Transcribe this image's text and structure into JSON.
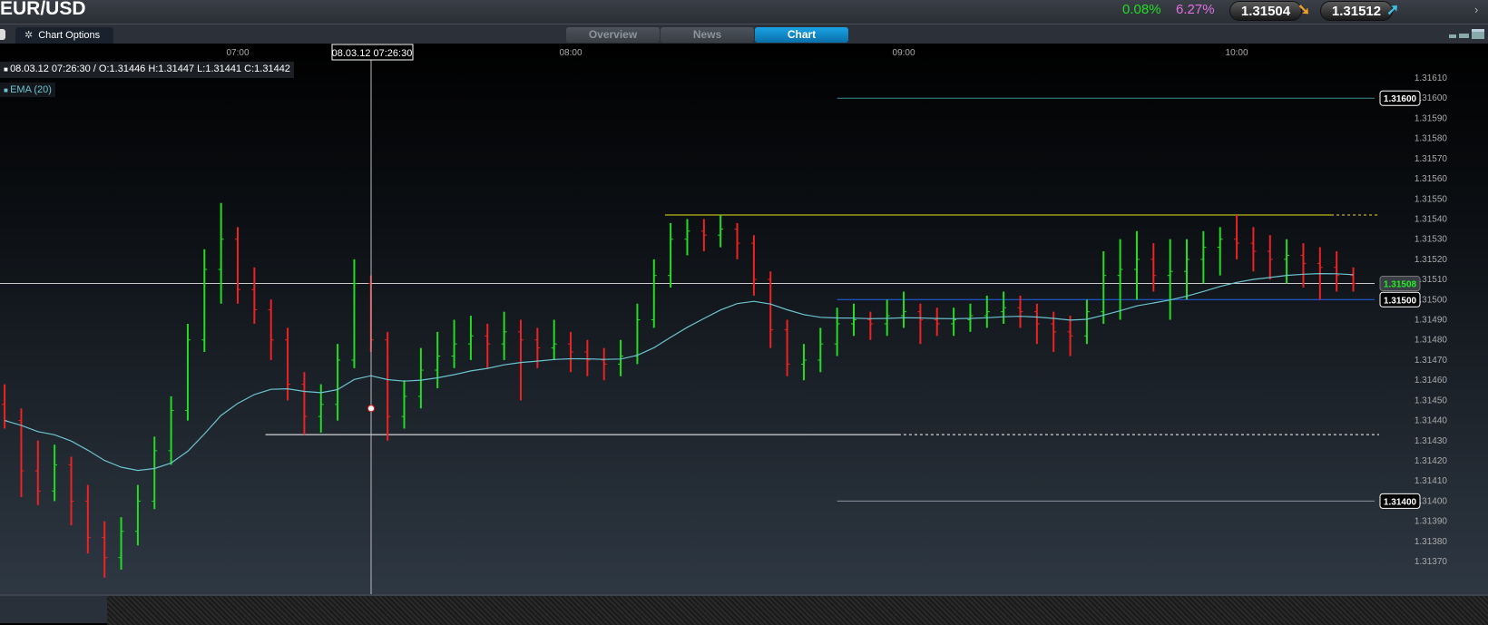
{
  "header": {
    "title": "EUR/USD",
    "change_pct": "0.08%",
    "range_pct": "6.27%",
    "sell_price": "1.31504",
    "buy_price": "1.31512",
    "colors": {
      "change": "#22dd22",
      "range": "#e070e0",
      "down_arrow": "#f0a020",
      "up_arrow": "#40c0e0"
    }
  },
  "toolbar": {
    "chart_options_label": "Chart Options",
    "tabs": [
      {
        "label": "Overview",
        "active": false
      },
      {
        "label": "News",
        "active": false
      },
      {
        "label": "Chart",
        "active": true
      }
    ]
  },
  "legend": {
    "ohlc": "08.03.12 07:26:30 / O:1.31446  H:1.31447  L:1.31441  C:1.31442",
    "indicator": "EMA (20)"
  },
  "crosshair": {
    "time_label": "08.03.12 07:26:30",
    "time": "07:26:30",
    "price": 1.31446
  },
  "chart_data": {
    "type": "ohlc",
    "x_ticks": [
      "07:00",
      "08:00",
      "09:00",
      "10:00"
    ],
    "y_ticks": [
      "1.31610",
      "1.31600",
      "1.31590",
      "1.31580",
      "1.31570",
      "1.31560",
      "1.31550",
      "1.31540",
      "1.31530",
      "1.31520",
      "1.31510",
      "1.31500",
      "1.31490",
      "1.31480",
      "1.31470",
      "1.31460",
      "1.31450",
      "1.31440",
      "1.31430",
      "1.31420",
      "1.31410",
      "1.31400",
      "1.31390",
      "1.31380",
      "1.31370"
    ],
    "xlim": [
      "06:17",
      "10:25"
    ],
    "ylim": [
      1.31362,
      1.31615
    ],
    "indicator": {
      "name": "EMA (20)",
      "period": 20,
      "color": "#6cc3d0"
    },
    "colors": {
      "up": "#22dd22",
      "down": "#ee2222"
    },
    "bars": [
      [
        "06:18",
        1.31448,
        1.31458,
        1.31436,
        1.3144
      ],
      [
        "06:21",
        1.3144,
        1.31446,
        1.31402,
        1.31415
      ],
      [
        "06:24",
        1.31415,
        1.3143,
        1.31398,
        1.31405
      ],
      [
        "06:27",
        1.31405,
        1.31428,
        1.314,
        1.31418
      ],
      [
        "06:30",
        1.31418,
        1.31422,
        1.31388,
        1.314
      ],
      [
        "06:33",
        1.314,
        1.31408,
        1.31374,
        1.31382
      ],
      [
        "06:36",
        1.31382,
        1.3139,
        1.31362,
        1.31372
      ],
      [
        "06:39",
        1.31372,
        1.31392,
        1.31366,
        1.31385
      ],
      [
        "06:42",
        1.31385,
        1.31408,
        1.31378,
        1.314
      ],
      [
        "06:45",
        1.314,
        1.31432,
        1.31396,
        1.31425
      ],
      [
        "06:48",
        1.31425,
        1.31452,
        1.31418,
        1.31445
      ],
      [
        "06:51",
        1.31445,
        1.31488,
        1.3144,
        1.3148
      ],
      [
        "06:54",
        1.3148,
        1.31525,
        1.31474,
        1.31515
      ],
      [
        "06:57",
        1.31515,
        1.31548,
        1.31498,
        1.3153
      ],
      [
        "07:00",
        1.3153,
        1.31536,
        1.31498,
        1.31505
      ],
      [
        "07:03",
        1.31505,
        1.31516,
        1.31488,
        1.31495
      ],
      [
        "07:06",
        1.31495,
        1.315,
        1.3147,
        1.3148
      ],
      [
        "07:09",
        1.3148,
        1.31486,
        1.3145,
        1.31458
      ],
      [
        "07:12",
        1.31458,
        1.31464,
        1.31433,
        1.31442
      ],
      [
        "07:15",
        1.31442,
        1.31458,
        1.31434,
        1.31448
      ],
      [
        "07:18",
        1.31448,
        1.31478,
        1.3144,
        1.3147
      ],
      [
        "07:21",
        1.3147,
        1.3152,
        1.31466,
        1.31508
      ],
      [
        "07:24",
        1.31508,
        1.31512,
        1.31474,
        1.3148
      ],
      [
        "07:27",
        1.3148,
        1.31484,
        1.3143,
        1.31442
      ],
      [
        "07:30",
        1.31442,
        1.3146,
        1.31436,
        1.31452
      ],
      [
        "07:33",
        1.31452,
        1.31476,
        1.31446,
        1.31465
      ],
      [
        "07:36",
        1.31465,
        1.31484,
        1.31456,
        1.31472
      ],
      [
        "07:39",
        1.31472,
        1.3149,
        1.31466,
        1.31478
      ],
      [
        "07:42",
        1.31478,
        1.31492,
        1.3147,
        1.31482
      ],
      [
        "07:45",
        1.31482,
        1.31488,
        1.31466,
        1.31478
      ],
      [
        "07:48",
        1.31478,
        1.31494,
        1.3147,
        1.31484
      ],
      [
        "07:51",
        1.31484,
        1.3149,
        1.3145,
        1.3148
      ],
      [
        "07:54",
        1.3148,
        1.31486,
        1.31466,
        1.31476
      ],
      [
        "07:57",
        1.31476,
        1.3149,
        1.3147,
        1.31478
      ],
      [
        "08:00",
        1.31478,
        1.31484,
        1.31464,
        1.31474
      ],
      [
        "08:03",
        1.31474,
        1.3148,
        1.31462,
        1.3147
      ],
      [
        "08:06",
        1.3147,
        1.31476,
        1.3146,
        1.31468
      ],
      [
        "08:09",
        1.31468,
        1.3148,
        1.31462,
        1.31472
      ],
      [
        "08:12",
        1.31472,
        1.31498,
        1.31468,
        1.3149
      ],
      [
        "08:15",
        1.3149,
        1.3152,
        1.31486,
        1.31512
      ],
      [
        "08:18",
        1.31512,
        1.31538,
        1.31506,
        1.3153
      ],
      [
        "08:21",
        1.3153,
        1.3154,
        1.31522,
        1.31534
      ],
      [
        "08:24",
        1.31534,
        1.3154,
        1.31524,
        1.31532
      ],
      [
        "08:27",
        1.31532,
        1.31542,
        1.31526,
        1.31535
      ],
      [
        "08:30",
        1.31535,
        1.31538,
        1.3152,
        1.31528
      ],
      [
        "08:33",
        1.31528,
        1.31532,
        1.31502,
        1.3151
      ],
      [
        "08:36",
        1.3151,
        1.31514,
        1.31476,
        1.31485
      ],
      [
        "08:39",
        1.31485,
        1.3149,
        1.31462,
        1.31468
      ],
      [
        "08:42",
        1.31468,
        1.31478,
        1.3146,
        1.3147
      ],
      [
        "08:45",
        1.3147,
        1.31486,
        1.31464,
        1.31478
      ],
      [
        "08:48",
        1.31478,
        1.31496,
        1.31472,
        1.31488
      ],
      [
        "08:51",
        1.31488,
        1.31498,
        1.31482,
        1.3149
      ],
      [
        "08:54",
        1.3149,
        1.31494,
        1.3148,
        1.31488
      ],
      [
        "08:57",
        1.31488,
        1.315,
        1.31482,
        1.31492
      ],
      [
        "09:00",
        1.31492,
        1.31504,
        1.31486,
        1.31494
      ],
      [
        "09:03",
        1.31494,
        1.31498,
        1.31478,
        1.3149
      ],
      [
        "09:06",
        1.3149,
        1.31496,
        1.31482,
        1.31488
      ],
      [
        "09:09",
        1.31488,
        1.31496,
        1.31482,
        1.3149
      ],
      [
        "09:12",
        1.3149,
        1.31498,
        1.31484,
        1.31492
      ],
      [
        "09:15",
        1.31492,
        1.31502,
        1.31486,
        1.31494
      ],
      [
        "09:18",
        1.31494,
        1.31504,
        1.31488,
        1.31496
      ],
      [
        "09:21",
        1.31496,
        1.31502,
        1.31486,
        1.31494
      ],
      [
        "09:24",
        1.31494,
        1.31498,
        1.31478,
        1.31488
      ],
      [
        "09:27",
        1.31488,
        1.31494,
        1.31474,
        1.31484
      ],
      [
        "09:30",
        1.31484,
        1.31492,
        1.31472,
        1.31482
      ],
      [
        "09:33",
        1.31482,
        1.315,
        1.31478,
        1.31494
      ],
      [
        "09:36",
        1.31494,
        1.31524,
        1.31488,
        1.31512
      ],
      [
        "09:39",
        1.31512,
        1.3153,
        1.3149,
        1.31515
      ],
      [
        "09:42",
        1.31515,
        1.31534,
        1.315,
        1.3152
      ],
      [
        "09:45",
        1.3152,
        1.31528,
        1.31504,
        1.31512
      ],
      [
        "09:48",
        1.31512,
        1.3153,
        1.3149,
        1.31514
      ],
      [
        "09:51",
        1.31514,
        1.3153,
        1.315,
        1.3152
      ],
      [
        "09:54",
        1.3152,
        1.31534,
        1.31508,
        1.31526
      ],
      [
        "09:57",
        1.31526,
        1.31536,
        1.31512,
        1.3153
      ],
      [
        "10:00",
        1.3153,
        1.31542,
        1.3152,
        1.31528
      ],
      [
        "10:03",
        1.31528,
        1.31536,
        1.31514,
        1.31524
      ],
      [
        "10:06",
        1.31524,
        1.31532,
        1.3151,
        1.3152
      ],
      [
        "10:09",
        1.3152,
        1.3153,
        1.31508,
        1.31522
      ],
      [
        "10:12",
        1.31522,
        1.31528,
        1.31506,
        1.31518
      ],
      [
        "10:15",
        1.31518,
        1.31526,
        1.315,
        1.31516
      ],
      [
        "10:18",
        1.31516,
        1.31524,
        1.31504,
        1.31512
      ],
      [
        "10:21",
        1.31512,
        1.31516,
        1.31504,
        1.31508
      ]
    ],
    "price_lines": [
      {
        "price": 1.316,
        "label": "1.31600",
        "from": "08:48",
        "color": "#3b8a93",
        "style": "solid"
      },
      {
        "price": 1.31542,
        "from": "08:17",
        "to": "10:17",
        "color": "#e8e020",
        "style": "solid",
        "extend_dashed": true
      },
      {
        "price": 1.31508,
        "label": "1.31508",
        "color": "#c8c8c8",
        "style": "solid",
        "current": true,
        "label_color": "#22ee22"
      },
      {
        "price": 1.315,
        "label": "1.31500",
        "from": "08:48",
        "color": "#2266ee",
        "style": "solid"
      },
      {
        "price": 1.31433,
        "from": "07:05",
        "to": "08:59",
        "color": "#ffffff",
        "style": "solid",
        "extend_dashed": true
      },
      {
        "price": 1.314,
        "label": "1.31400",
        "from": "08:48",
        "color": "#8892a0",
        "style": "solid"
      }
    ]
  }
}
